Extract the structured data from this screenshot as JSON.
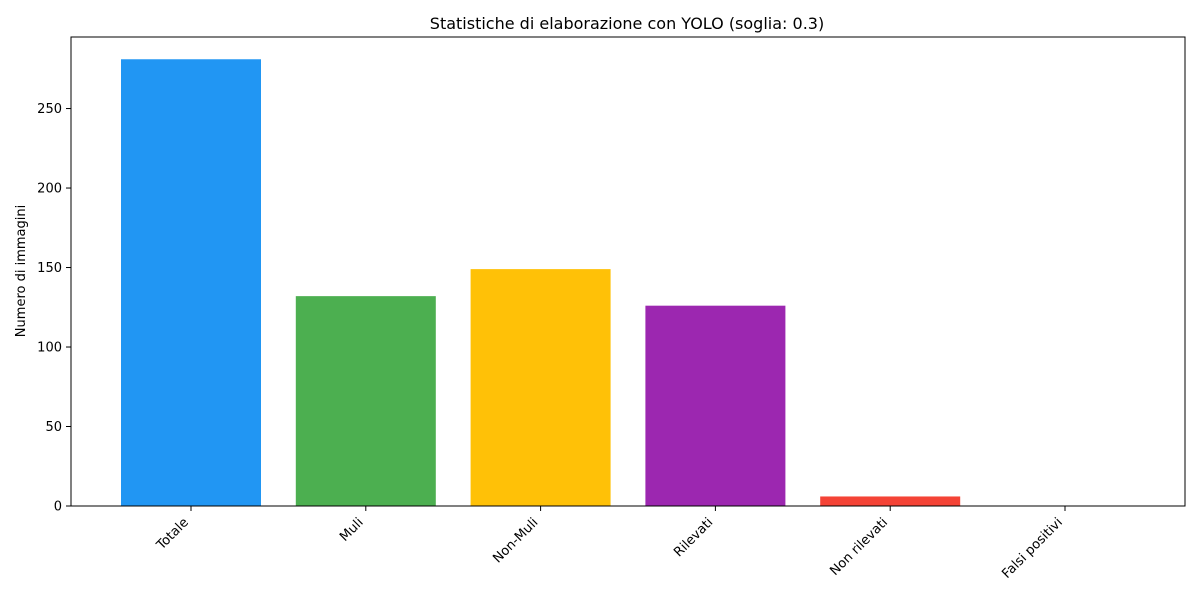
{
  "chart_data": {
    "type": "bar",
    "title": "Statistiche di elaborazione con YOLO (soglia: 0.3)",
    "xlabel": "",
    "ylabel": "Numero di immagini",
    "categories": [
      "Totale",
      "Muli",
      "Non-Muli",
      "Rilevati",
      "Non rilevati",
      "Falsi positivi"
    ],
    "values": [
      281,
      132,
      149,
      126,
      6,
      0
    ],
    "colors": [
      "#2196f3",
      "#4caf50",
      "#ffc107",
      "#9c27b0",
      "#f44336",
      "#607d8b"
    ],
    "ylim": [
      0,
      295
    ],
    "yticks": [
      0,
      50,
      100,
      150,
      200,
      250
    ],
    "grid": false,
    "legend": "none"
  }
}
